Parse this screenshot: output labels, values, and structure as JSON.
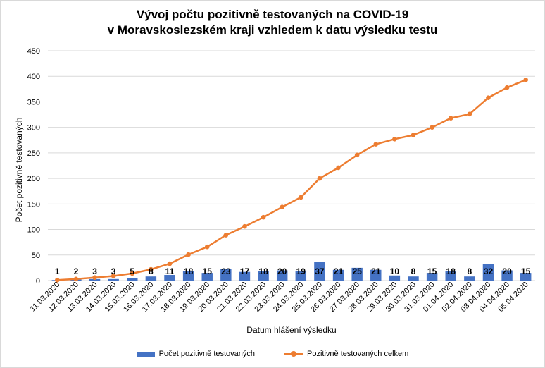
{
  "title": {
    "line1": "Vývoj počtu pozitivně testovaných na COVID-19",
    "line2": "v Moravskoslezském kraji vzhledem k datu výsledku testu"
  },
  "colors": {
    "bars": "#4472c4",
    "line": "#ed7d31",
    "grid": "#d9d9d9"
  },
  "legend": {
    "bar_label": "Počet pozitivně testovaných",
    "line_label": "Pozitivně testovaných celkem",
    "placement": "bottom"
  },
  "chart_data": {
    "type": "bar+line",
    "title": "Vývoj počtu pozitivně testovaných na COVID-19 v Moravskoslezském kraji vzhledem k datu výsledku testu",
    "xlabel": "Datum hlášení výsledku",
    "ylabel": "Počet pozitivně testovaných",
    "ylim": [
      0,
      450
    ],
    "yticks": [
      0,
      50,
      100,
      150,
      200,
      250,
      300,
      350,
      400,
      450
    ],
    "grid": true,
    "categories": [
      "11.03.2020",
      "12.03.2020",
      "13.03.2020",
      "14.03.2020",
      "15.03.2020",
      "16.03.2020",
      "17.03.2020",
      "18.03.2020",
      "19.03.2020",
      "20.03.2020",
      "21.03.2020",
      "22.03.2020",
      "23.03.2020",
      "24.03.2020",
      "25.03.2020",
      "26.03.2020",
      "27.03.2020",
      "28.03.2020",
      "29.03.2020",
      "30.03.2020",
      "31.03.2020",
      "01.04.2020",
      "02.04.2020",
      "03.04.2020",
      "04.04.2020",
      "05.04.2020"
    ],
    "series": [
      {
        "name": "Počet pozitivně testovaných",
        "type": "bar",
        "values": [
          1,
          2,
          3,
          3,
          5,
          8,
          11,
          18,
          15,
          23,
          17,
          18,
          20,
          19,
          37,
          21,
          25,
          21,
          10,
          8,
          15,
          18,
          8,
          32,
          20,
          15
        ]
      },
      {
        "name": "Pozitivně testovaných celkem",
        "type": "line",
        "values": [
          1,
          3,
          6,
          9,
          14,
          22,
          33,
          51,
          66,
          89,
          106,
          124,
          144,
          163,
          200,
          221,
          246,
          267,
          277,
          285,
          300,
          318,
          326,
          358,
          378,
          393
        ]
      }
    ]
  }
}
